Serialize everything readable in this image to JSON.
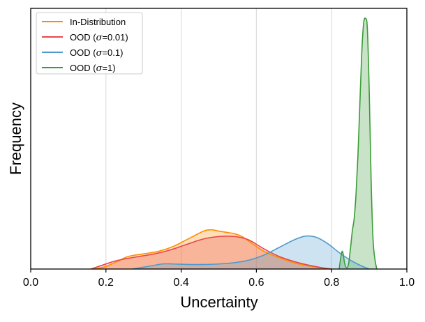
{
  "chart_data": {
    "type": "area",
    "title": "",
    "xlabel": "Uncertainty",
    "ylabel": "Frequency",
    "xlim": [
      0.0,
      1.0
    ],
    "ylim": [
      0.0,
      1.0
    ],
    "xticks": [
      0.0,
      0.2,
      0.4,
      0.6,
      0.8,
      1.0
    ],
    "xtick_labels": [
      "0.0",
      "0.2",
      "0.4",
      "0.6",
      "0.8",
      "1.0"
    ],
    "grid": "vertical",
    "legend_position": "top-left",
    "series": [
      {
        "name": "In-Distribution",
        "color": "#ff8c00",
        "x": [
          0.17,
          0.2,
          0.23,
          0.26,
          0.3,
          0.34,
          0.38,
          0.42,
          0.46,
          0.48,
          0.5,
          0.52,
          0.54,
          0.56,
          0.58,
          0.62,
          0.66,
          0.7,
          0.74,
          0.78,
          0.8
        ],
        "y": [
          0.0,
          0.01,
          0.03,
          0.05,
          0.06,
          0.07,
          0.09,
          0.12,
          0.15,
          0.155,
          0.15,
          0.145,
          0.14,
          0.13,
          0.11,
          0.07,
          0.045,
          0.025,
          0.012,
          0.003,
          0.0
        ]
      },
      {
        "name": "OOD (σ=0.01)",
        "color": "#e8474a",
        "x": [
          0.16,
          0.19,
          0.22,
          0.25,
          0.29,
          0.33,
          0.37,
          0.41,
          0.45,
          0.48,
          0.52,
          0.55,
          0.58,
          0.62,
          0.66,
          0.7,
          0.74,
          0.78,
          0.8
        ],
        "y": [
          0.0,
          0.015,
          0.03,
          0.04,
          0.05,
          0.06,
          0.075,
          0.095,
          0.115,
          0.125,
          0.13,
          0.127,
          0.115,
          0.08,
          0.05,
          0.03,
          0.015,
          0.004,
          0.0
        ]
      },
      {
        "name": "OOD (σ=0.1)",
        "color": "#4f9acd",
        "x": [
          0.27,
          0.31,
          0.35,
          0.38,
          0.42,
          0.46,
          0.5,
          0.54,
          0.58,
          0.62,
          0.66,
          0.7,
          0.73,
          0.76,
          0.79,
          0.82,
          0.85,
          0.88,
          0.9
        ],
        "y": [
          0.0,
          0.01,
          0.02,
          0.02,
          0.018,
          0.018,
          0.02,
          0.025,
          0.035,
          0.055,
          0.085,
          0.115,
          0.13,
          0.125,
          0.1,
          0.065,
          0.035,
          0.012,
          0.0
        ]
      },
      {
        "name": "OOD (σ=1)",
        "color": "#3a9c35",
        "x": [
          0.82,
          0.828,
          0.835,
          0.84,
          0.845,
          0.85,
          0.855,
          0.86,
          0.865,
          0.87,
          0.875,
          0.88,
          0.885,
          0.89,
          0.895,
          0.9,
          0.905,
          0.91,
          0.915,
          0.92
        ],
        "y": [
          0.0,
          0.07,
          0.02,
          0.005,
          0.02,
          0.08,
          0.15,
          0.2,
          0.3,
          0.45,
          0.65,
          0.85,
          0.97,
          0.99,
          0.95,
          0.7,
          0.35,
          0.12,
          0.04,
          0.0
        ]
      }
    ],
    "legend_labels": [
      {
        "prefix": "In-Distribution",
        "sigma": "",
        "suffix": ""
      },
      {
        "prefix": "OOD (",
        "sigma": "σ",
        "suffix": "=0.01)"
      },
      {
        "prefix": "OOD (",
        "sigma": "σ",
        "suffix": "=0.1)"
      },
      {
        "prefix": "OOD (",
        "sigma": "σ",
        "suffix": "=1)"
      }
    ]
  }
}
